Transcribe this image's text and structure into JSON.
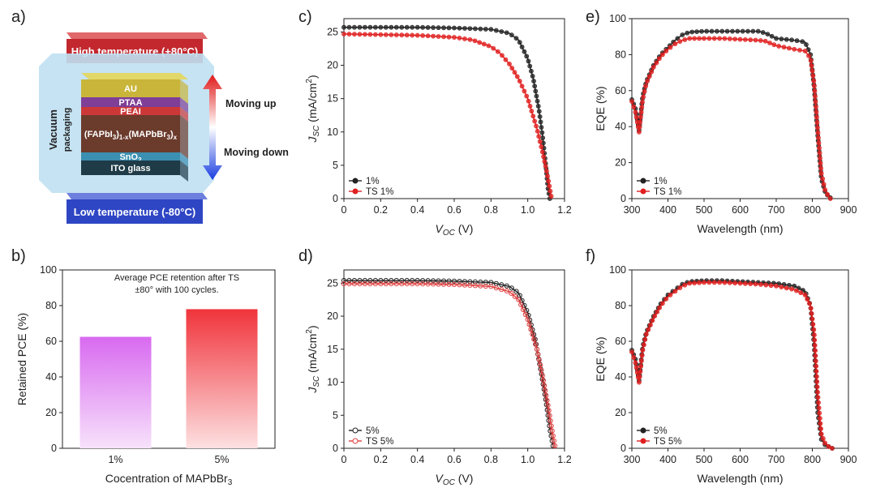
{
  "panels": {
    "a": {
      "label": "a)",
      "top_bar": "High temperature (+80°C)",
      "bottom_bar": "Low temperature (-80°C)",
      "vacuum": "Vacuum",
      "packaging": "packaging",
      "moving_up": "Moving up",
      "moving_down": "Moving down",
      "layers": [
        {
          "text": "AU",
          "color": "#c9b53a"
        },
        {
          "text": "PTAA",
          "color": "#7f3f97"
        },
        {
          "text": "PEAI",
          "color": "#cc3838"
        },
        {
          "text": "(FAPbI3)1-x(MAPbBr3)x",
          "color": "#6b3b2c"
        },
        {
          "text": "SnO2",
          "color": "#3b8fb0"
        },
        {
          "text": "ITO glass",
          "color": "#1f3b47"
        }
      ],
      "colors": {
        "top_bar": "#c3282e",
        "bottom_bar": "#2e46c4",
        "vacuum": "#bfe0f2"
      }
    },
    "b": {
      "label": "b)"
    },
    "c": {
      "label": "c)"
    },
    "d": {
      "label": "d)"
    },
    "e": {
      "label": "e)"
    },
    "f": {
      "label": "f)"
    }
  },
  "chart_data": [
    {
      "id": "b",
      "type": "bar",
      "categories": [
        "1%",
        "5%"
      ],
      "values": [
        62.5,
        78
      ],
      "bar_colors": [
        "#d86af0",
        "#f0343b"
      ],
      "xlabel": "Cocentration of MAPbBr3",
      "ylabel": "Retained PCE (%)",
      "ylim": [
        0,
        100
      ],
      "yticks": [
        0,
        20,
        40,
        60,
        80,
        100
      ],
      "annotation": [
        "Average PCE retention after TS",
        "±80° with 100 cycles."
      ]
    },
    {
      "id": "c",
      "type": "line",
      "xlabel": "VOC (V)",
      "ylabel": "JSC (mA/cm2)",
      "xlim": [
        0,
        1.2
      ],
      "ylim": [
        0,
        27
      ],
      "xticks": [
        0,
        0.2,
        0.4,
        0.6,
        0.8,
        1.0,
        1.2
      ],
      "yticks": [
        0,
        5,
        10,
        15,
        20,
        25
      ],
      "marker": "filled",
      "series": [
        {
          "name": "1%",
          "color": "#222222",
          "x": [
            0,
            0.2,
            0.4,
            0.6,
            0.8,
            0.9,
            0.95,
            1.0,
            1.03,
            1.06,
            1.08,
            1.1,
            1.11,
            1.12
          ],
          "y": [
            25.7,
            25.7,
            25.7,
            25.6,
            25.4,
            24.8,
            23.8,
            21.0,
            18.0,
            13.5,
            9.5,
            4.5,
            1.5,
            0
          ]
        },
        {
          "name": "TS 1%",
          "color": "#e02020",
          "x": [
            0,
            0.2,
            0.4,
            0.6,
            0.7,
            0.8,
            0.85,
            0.9,
            0.95,
            1.0,
            1.05,
            1.08,
            1.1,
            1.12,
            1.13
          ],
          "y": [
            24.7,
            24.6,
            24.5,
            24.2,
            23.8,
            22.8,
            21.8,
            20.2,
            18.0,
            15.0,
            10.5,
            7.0,
            4.5,
            1.5,
            0
          ]
        }
      ]
    },
    {
      "id": "d",
      "type": "line",
      "xlabel": "VOC (V)",
      "ylabel": "JSC (mA/cm2)",
      "xlim": [
        0,
        1.2
      ],
      "ylim": [
        0,
        27
      ],
      "xticks": [
        0,
        0.2,
        0.4,
        0.6,
        0.8,
        1.0,
        1.2
      ],
      "yticks": [
        0,
        5,
        10,
        15,
        20,
        25
      ],
      "marker": "open",
      "series": [
        {
          "name": "5%",
          "color": "#222222",
          "x": [
            0,
            0.2,
            0.4,
            0.6,
            0.8,
            0.9,
            0.95,
            1.0,
            1.04,
            1.07,
            1.1,
            1.12,
            1.14
          ],
          "y": [
            25.4,
            25.4,
            25.4,
            25.3,
            25.1,
            24.5,
            23.5,
            20.5,
            16.5,
            12.0,
            7.0,
            3.0,
            0
          ]
        },
        {
          "name": "TS 5%",
          "color": "#e04040",
          "x": [
            0,
            0.2,
            0.4,
            0.6,
            0.8,
            0.9,
            0.95,
            1.0,
            1.05,
            1.08,
            1.11,
            1.13,
            1.15
          ],
          "y": [
            24.9,
            24.9,
            24.9,
            24.8,
            24.5,
            23.7,
            22.5,
            19.5,
            15.0,
            11.0,
            6.5,
            3.0,
            0
          ]
        }
      ]
    },
    {
      "id": "e",
      "type": "line",
      "xlabel": "Wavelength (nm)",
      "ylabel": "EQE (%)",
      "xlim": [
        300,
        900
      ],
      "ylim": [
        0,
        100
      ],
      "xticks": [
        300,
        400,
        500,
        600,
        700,
        800,
        900
      ],
      "yticks": [
        0,
        20,
        40,
        60,
        80,
        100
      ],
      "marker": "filled",
      "series": [
        {
          "name": "1%",
          "color": "#222222",
          "x": [
            300,
            310,
            320,
            330,
            340,
            360,
            380,
            400,
            420,
            440,
            460,
            500,
            550,
            600,
            650,
            670,
            700,
            750,
            780,
            795,
            805,
            815,
            825,
            835,
            845,
            855
          ],
          "y": [
            55,
            50,
            38,
            57,
            65,
            74,
            80,
            84,
            88,
            91,
            92.5,
            93,
            93,
            93,
            93,
            92,
            89,
            88,
            87,
            80,
            62,
            35,
            11,
            4,
            1,
            0
          ]
        },
        {
          "name": "TS 1%",
          "color": "#e02020",
          "x": [
            300,
            310,
            320,
            330,
            340,
            360,
            380,
            400,
            420,
            440,
            460,
            500,
            550,
            600,
            650,
            670,
            700,
            750,
            780,
            795,
            805,
            815,
            825,
            835,
            845,
            850
          ],
          "y": [
            54,
            48,
            37,
            55,
            64,
            73,
            79,
            83,
            86,
            88,
            89,
            89,
            89,
            88.5,
            88,
            87.5,
            85,
            83,
            82,
            78,
            64,
            38,
            14,
            5,
            1,
            0
          ]
        }
      ]
    },
    {
      "id": "f",
      "type": "line",
      "xlabel": "Wavelength (nm)",
      "ylabel": "EQE (%)",
      "xlim": [
        300,
        900
      ],
      "ylim": [
        0,
        100
      ],
      "xticks": [
        300,
        400,
        500,
        600,
        700,
        800,
        900
      ],
      "yticks": [
        0,
        20,
        40,
        60,
        80,
        100
      ],
      "marker": "filled",
      "series": [
        {
          "name": "5%",
          "color": "#222222",
          "x": [
            300,
            310,
            320,
            330,
            340,
            360,
            380,
            400,
            420,
            440,
            460,
            500,
            550,
            600,
            650,
            700,
            750,
            780,
            795,
            805,
            815,
            825,
            835,
            845,
            855
          ],
          "y": [
            55,
            50,
            38,
            57,
            65,
            74,
            81,
            86,
            89,
            92,
            93.5,
            94,
            94,
            93.5,
            93,
            92.5,
            91,
            88,
            80,
            58,
            20,
            5,
            2,
            1,
            0
          ]
        },
        {
          "name": "TS 5%",
          "color": "#e02020",
          "x": [
            300,
            310,
            320,
            330,
            340,
            360,
            380,
            400,
            420,
            440,
            460,
            500,
            550,
            600,
            650,
            700,
            750,
            780,
            795,
            805,
            815,
            825,
            835,
            845,
            855
          ],
          "y": [
            54,
            48,
            37,
            55,
            64,
            73,
            80,
            85,
            88,
            91,
            92.5,
            93,
            93,
            92.5,
            92,
            91,
            89,
            86,
            80,
            65,
            30,
            8,
            3,
            1,
            0
          ]
        }
      ]
    }
  ]
}
